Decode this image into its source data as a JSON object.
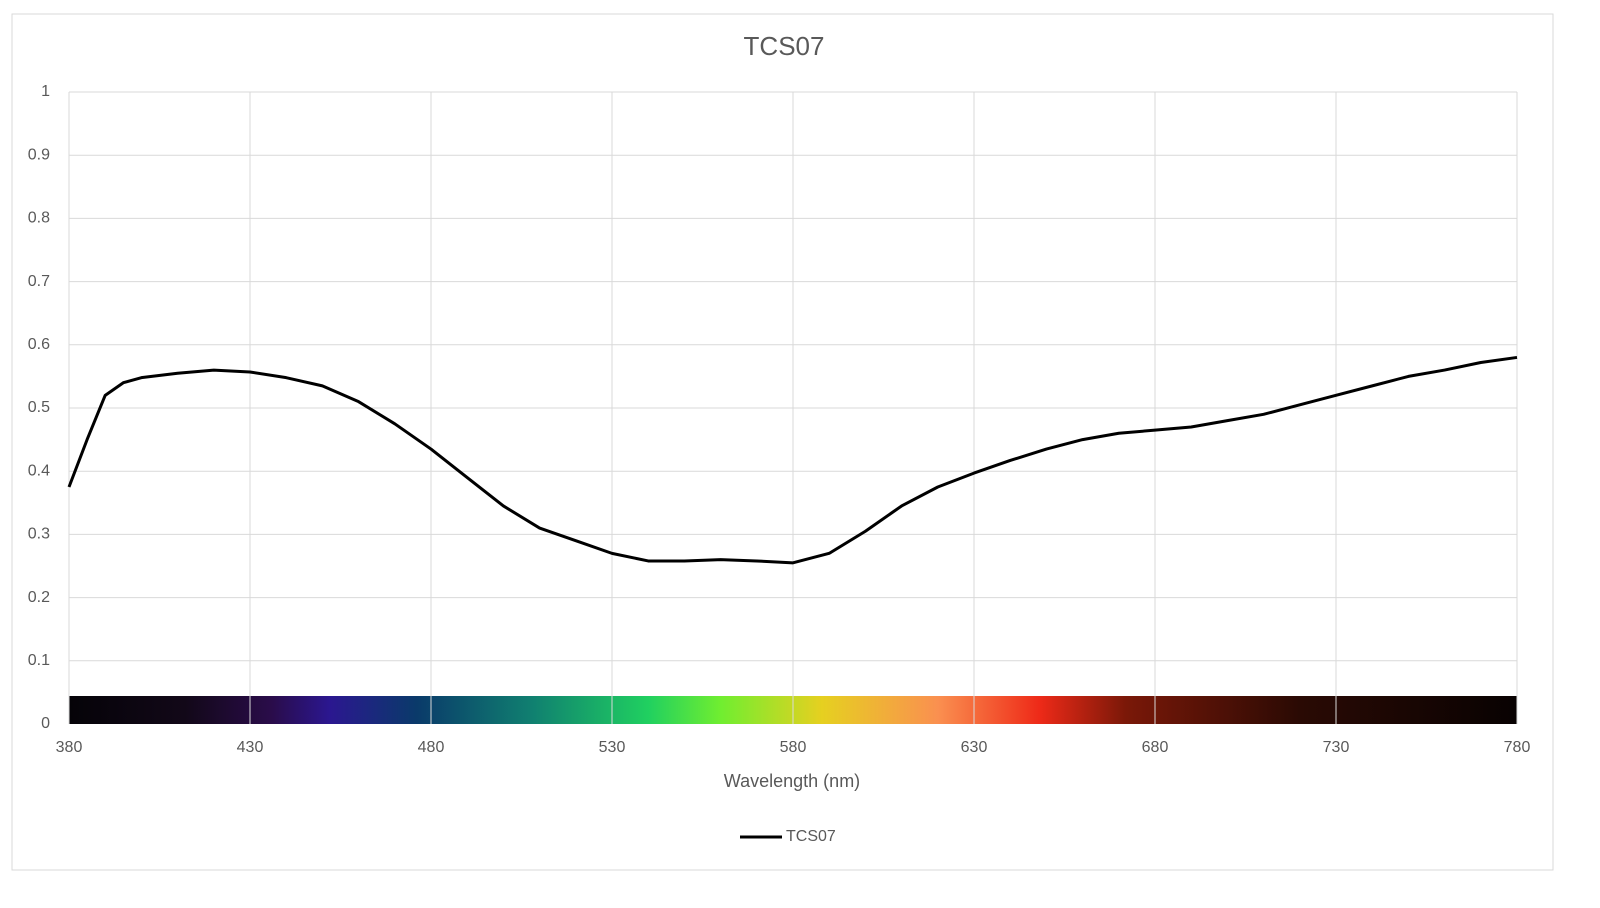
{
  "chart_data": {
    "type": "line",
    "title": "TCS07",
    "x_label": "Wavelength (nm)",
    "x": [
      380,
      385,
      390,
      395,
      400,
      410,
      420,
      430,
      440,
      450,
      460,
      470,
      480,
      490,
      500,
      510,
      520,
      530,
      540,
      550,
      560,
      570,
      580,
      590,
      600,
      610,
      620,
      630,
      640,
      650,
      660,
      670,
      680,
      690,
      700,
      710,
      720,
      730,
      740,
      750,
      760,
      770,
      780
    ],
    "series": [
      {
        "name": "TCS07",
        "color": "#000000",
        "values": [
          0.375,
          0.45,
          0.52,
          0.54,
          0.548,
          0.555,
          0.56,
          0.557,
          0.548,
          0.535,
          0.51,
          0.475,
          0.435,
          0.39,
          0.345,
          0.31,
          0.29,
          0.27,
          0.258,
          0.258,
          0.26,
          0.258,
          0.255,
          0.27,
          0.305,
          0.345,
          0.375,
          0.397,
          0.417,
          0.435,
          0.45,
          0.46,
          0.465,
          0.47,
          0.48,
          0.49,
          0.505,
          0.52,
          0.535,
          0.55,
          0.56,
          0.572,
          0.58
        ]
      }
    ],
    "xlim": [
      380,
      780
    ],
    "xticks": [
      380,
      430,
      480,
      530,
      580,
      630,
      680,
      730,
      780
    ],
    "ylim": [
      0,
      1
    ],
    "yticks": [
      0,
      0.1,
      0.2,
      0.3,
      0.4,
      0.5,
      0.6,
      0.7,
      0.8,
      0.9,
      1
    ],
    "grid": true,
    "legend": "bottom"
  }
}
